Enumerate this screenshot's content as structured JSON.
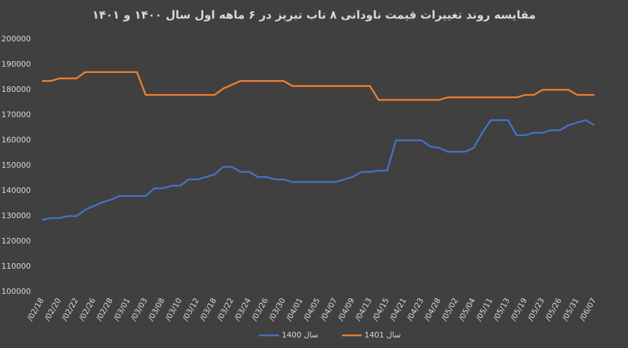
{
  "chart_data": {
    "type": "line",
    "title": "مقایسه روند تغییرات قیمت ناودانی ۸ ناب تبریز در ۶ ماهه اول سال ۱۴۰۰ و ۱۴۰۱",
    "categories": [
      "/02/18",
      null,
      "/02/20",
      null,
      "/02/22",
      null,
      "/02/26",
      null,
      "/02/28",
      null,
      "/03/01",
      null,
      "/03/03",
      null,
      "/03/08",
      null,
      "/03/10",
      null,
      "/03/12",
      null,
      "/03/18",
      null,
      "/03/22",
      null,
      "/03/24",
      null,
      "/03/26",
      null,
      "/03/30",
      null,
      "/04/01",
      null,
      "/04/05",
      null,
      "/04/07",
      null,
      "/04/09",
      null,
      "/04/13",
      null,
      "/04/15",
      null,
      "/04/21",
      null,
      "/04/23",
      null,
      "/04/28",
      null,
      "/05/02",
      null,
      "/05/04",
      null,
      "/05/11",
      null,
      "/05/13",
      null,
      "/05/19",
      null,
      "/05/23",
      null,
      "/05/26",
      null,
      "/05/31",
      null,
      "/06/07"
    ],
    "series": [
      {
        "name": "سال 1400",
        "color": "#4472c4",
        "values": [
          128500,
          129200,
          129200,
          130000,
          130000,
          132500,
          134000,
          135500,
          136500,
          138000,
          138000,
          138000,
          138000,
          141000,
          141000,
          142000,
          142000,
          144500,
          144500,
          145500,
          146500,
          149500,
          149500,
          147500,
          147500,
          145500,
          145500,
          144500,
          144500,
          143500,
          143500,
          143500,
          143500,
          143500,
          143500,
          144500,
          145500,
          147500,
          147500,
          148000,
          148000,
          160000,
          160000,
          160000,
          160000,
          157500,
          157000,
          155500,
          155500,
          155500,
          157000,
          163000,
          168000,
          168000,
          168000,
          162000,
          162000,
          163000,
          163000,
          164000,
          164000,
          166000,
          167000,
          168000,
          166000
        ]
      },
      {
        "name": "سال 1401",
        "color": "#ed7d31",
        "values": [
          183500,
          183500,
          184500,
          184500,
          184500,
          187000,
          187000,
          187000,
          187000,
          187000,
          187000,
          187000,
          178000,
          178000,
          178000,
          178000,
          178000,
          178000,
          178000,
          178000,
          178000,
          180500,
          182000,
          183500,
          183500,
          183500,
          183500,
          183500,
          183500,
          181500,
          181500,
          181500,
          181500,
          181500,
          181500,
          181500,
          181500,
          181500,
          181500,
          176000,
          176000,
          176000,
          176000,
          176000,
          176000,
          176000,
          176000,
          177000,
          177000,
          177000,
          177000,
          177000,
          177000,
          177000,
          177000,
          177000,
          178000,
          178000,
          180000,
          180000,
          180000,
          180000,
          178000,
          178000,
          178000
        ]
      }
    ],
    "ylim": [
      100000,
      200000
    ],
    "yticks": [
      100000,
      110000,
      120000,
      130000,
      140000,
      150000,
      160000,
      170000,
      180000,
      190000,
      200000
    ],
    "grid": false,
    "legend": "bottom"
  }
}
